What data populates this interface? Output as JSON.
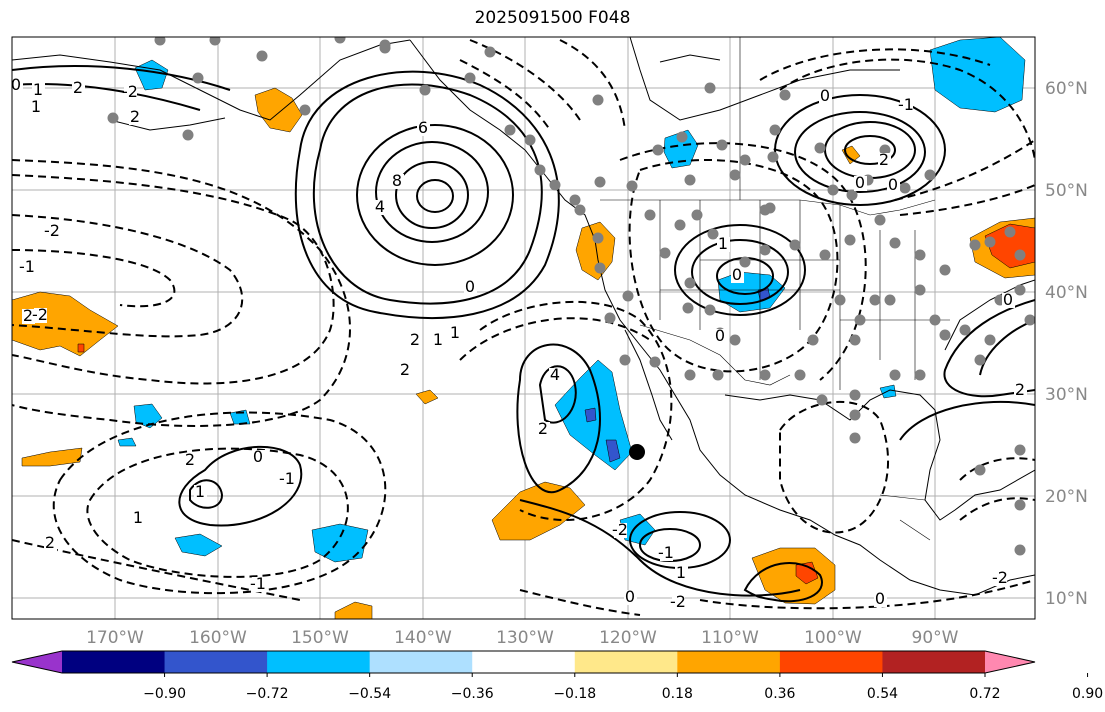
{
  "title": "2025091500 F048",
  "lat_labels": [
    "60°N",
    "50°N",
    "40°N",
    "30°N",
    "20°N",
    "10°N"
  ],
  "lon_labels": [
    "170°W",
    "160°W",
    "150°W",
    "140°W",
    "130°W",
    "120°W",
    "110°W",
    "100°W",
    "90°W"
  ],
  "colorbar": {
    "colors": [
      "#9933cc",
      "#000080",
      "#3355cc",
      "#00bfff",
      "#aee0ff",
      "#ffffff",
      "#ffe88a",
      "#ffa500",
      "#ff4500",
      "#b22222",
      "#ff88b0"
    ],
    "tick_labels": [
      "−0.90",
      "−0.72",
      "−0.54",
      "−0.36",
      "−0.18",
      "0.18",
      "0.36",
      "0.54",
      "0.72",
      "0.90"
    ]
  },
  "contour_labels": [
    "0",
    "1",
    "2",
    "-2",
    "1",
    "2",
    "6",
    "8",
    "4",
    "2",
    "1",
    "-2",
    "-1",
    "2",
    "-2",
    "2",
    "0",
    "0",
    "1",
    "0",
    "-2",
    "-1",
    "2",
    "1",
    "0",
    "-1",
    "1",
    "2",
    "1",
    "0",
    "0",
    "-1",
    "0",
    "2",
    "0",
    "4",
    "2",
    "-2",
    "-1",
    "1",
    "0",
    "-2",
    "0",
    "2"
  ],
  "colors": {
    "axis": "#000000",
    "grid": "#b0b0b0",
    "label_gray": "#888888",
    "orange": "#ffa500",
    "cyan": "#00bfff",
    "red": "#ff4500",
    "dot": "#808080"
  }
}
